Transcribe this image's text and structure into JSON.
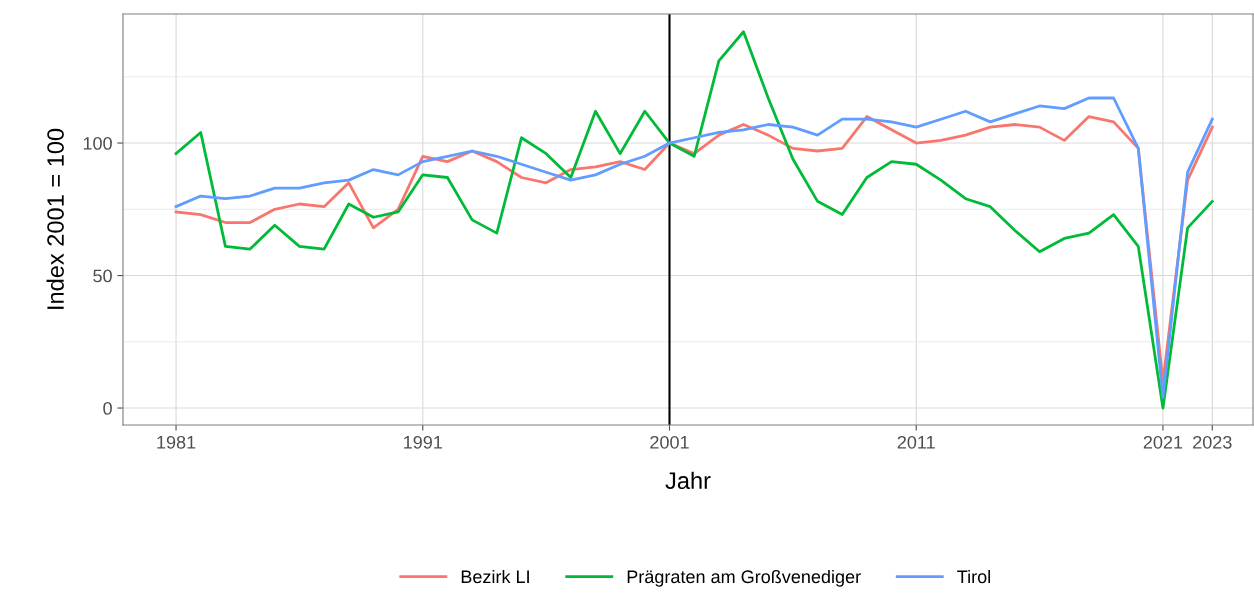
{
  "chart_data": {
    "type": "line",
    "xlabel": "Jahr",
    "ylabel": "Index 2001 = 100",
    "x": [
      1981,
      1982,
      1983,
      1984,
      1985,
      1986,
      1987,
      1988,
      1989,
      1990,
      1991,
      1992,
      1993,
      1994,
      1995,
      1996,
      1997,
      1998,
      1999,
      2000,
      2001,
      2002,
      2003,
      2004,
      2005,
      2006,
      2007,
      2008,
      2009,
      2010,
      2011,
      2012,
      2013,
      2014,
      2015,
      2016,
      2017,
      2018,
      2019,
      2020,
      2021,
      2022,
      2023
    ],
    "series": [
      {
        "name": "Bezirk LI",
        "color": "#f8766d",
        "values": [
          74,
          73,
          70,
          70,
          75,
          77,
          76,
          85,
          68,
          75,
          95,
          93,
          97,
          93,
          87,
          85,
          90,
          91,
          93,
          90,
          100,
          96,
          103,
          107,
          103,
          98,
          97,
          98,
          110,
          105,
          100,
          101,
          103,
          106,
          107,
          106,
          101,
          110,
          108,
          98,
          10,
          86,
          106
        ]
      },
      {
        "name": "Prägraten am Großvenediger",
        "color": "#00ba38",
        "values": [
          96,
          104,
          61,
          60,
          69,
          61,
          60,
          77,
          72,
          74,
          88,
          87,
          71,
          66,
          102,
          96,
          87,
          112,
          96,
          112,
          100,
          95,
          131,
          142,
          117,
          94,
          78,
          73,
          87,
          93,
          92,
          86,
          79,
          76,
          67,
          59,
          64,
          66,
          73,
          61,
          0,
          68,
          78
        ]
      },
      {
        "name": "Tirol",
        "color": "#619cff",
        "values": [
          76,
          80,
          79,
          80,
          83,
          83,
          85,
          86,
          90,
          88,
          93,
          95,
          97,
          95,
          92,
          89,
          86,
          88,
          92,
          95,
          100,
          102,
          104,
          105,
          107,
          106,
          103,
          109,
          109,
          108,
          106,
          109,
          112,
          108,
          111,
          114,
          113,
          117,
          117,
          98,
          4,
          89,
          109
        ]
      }
    ],
    "xlim": [
      1978.85,
      2024.65
    ],
    "ylim": [
      -6.4,
      148.7
    ],
    "xticks": [
      1981,
      1991,
      2001,
      2011,
      2021,
      2023
    ],
    "yticks": [
      0,
      50,
      100
    ],
    "ref_lines": [
      {
        "axis": "x",
        "value": 2001,
        "color": "#000000"
      }
    ],
    "grid": true,
    "legend": "bottom",
    "line_style": "solid",
    "marker": "none"
  }
}
